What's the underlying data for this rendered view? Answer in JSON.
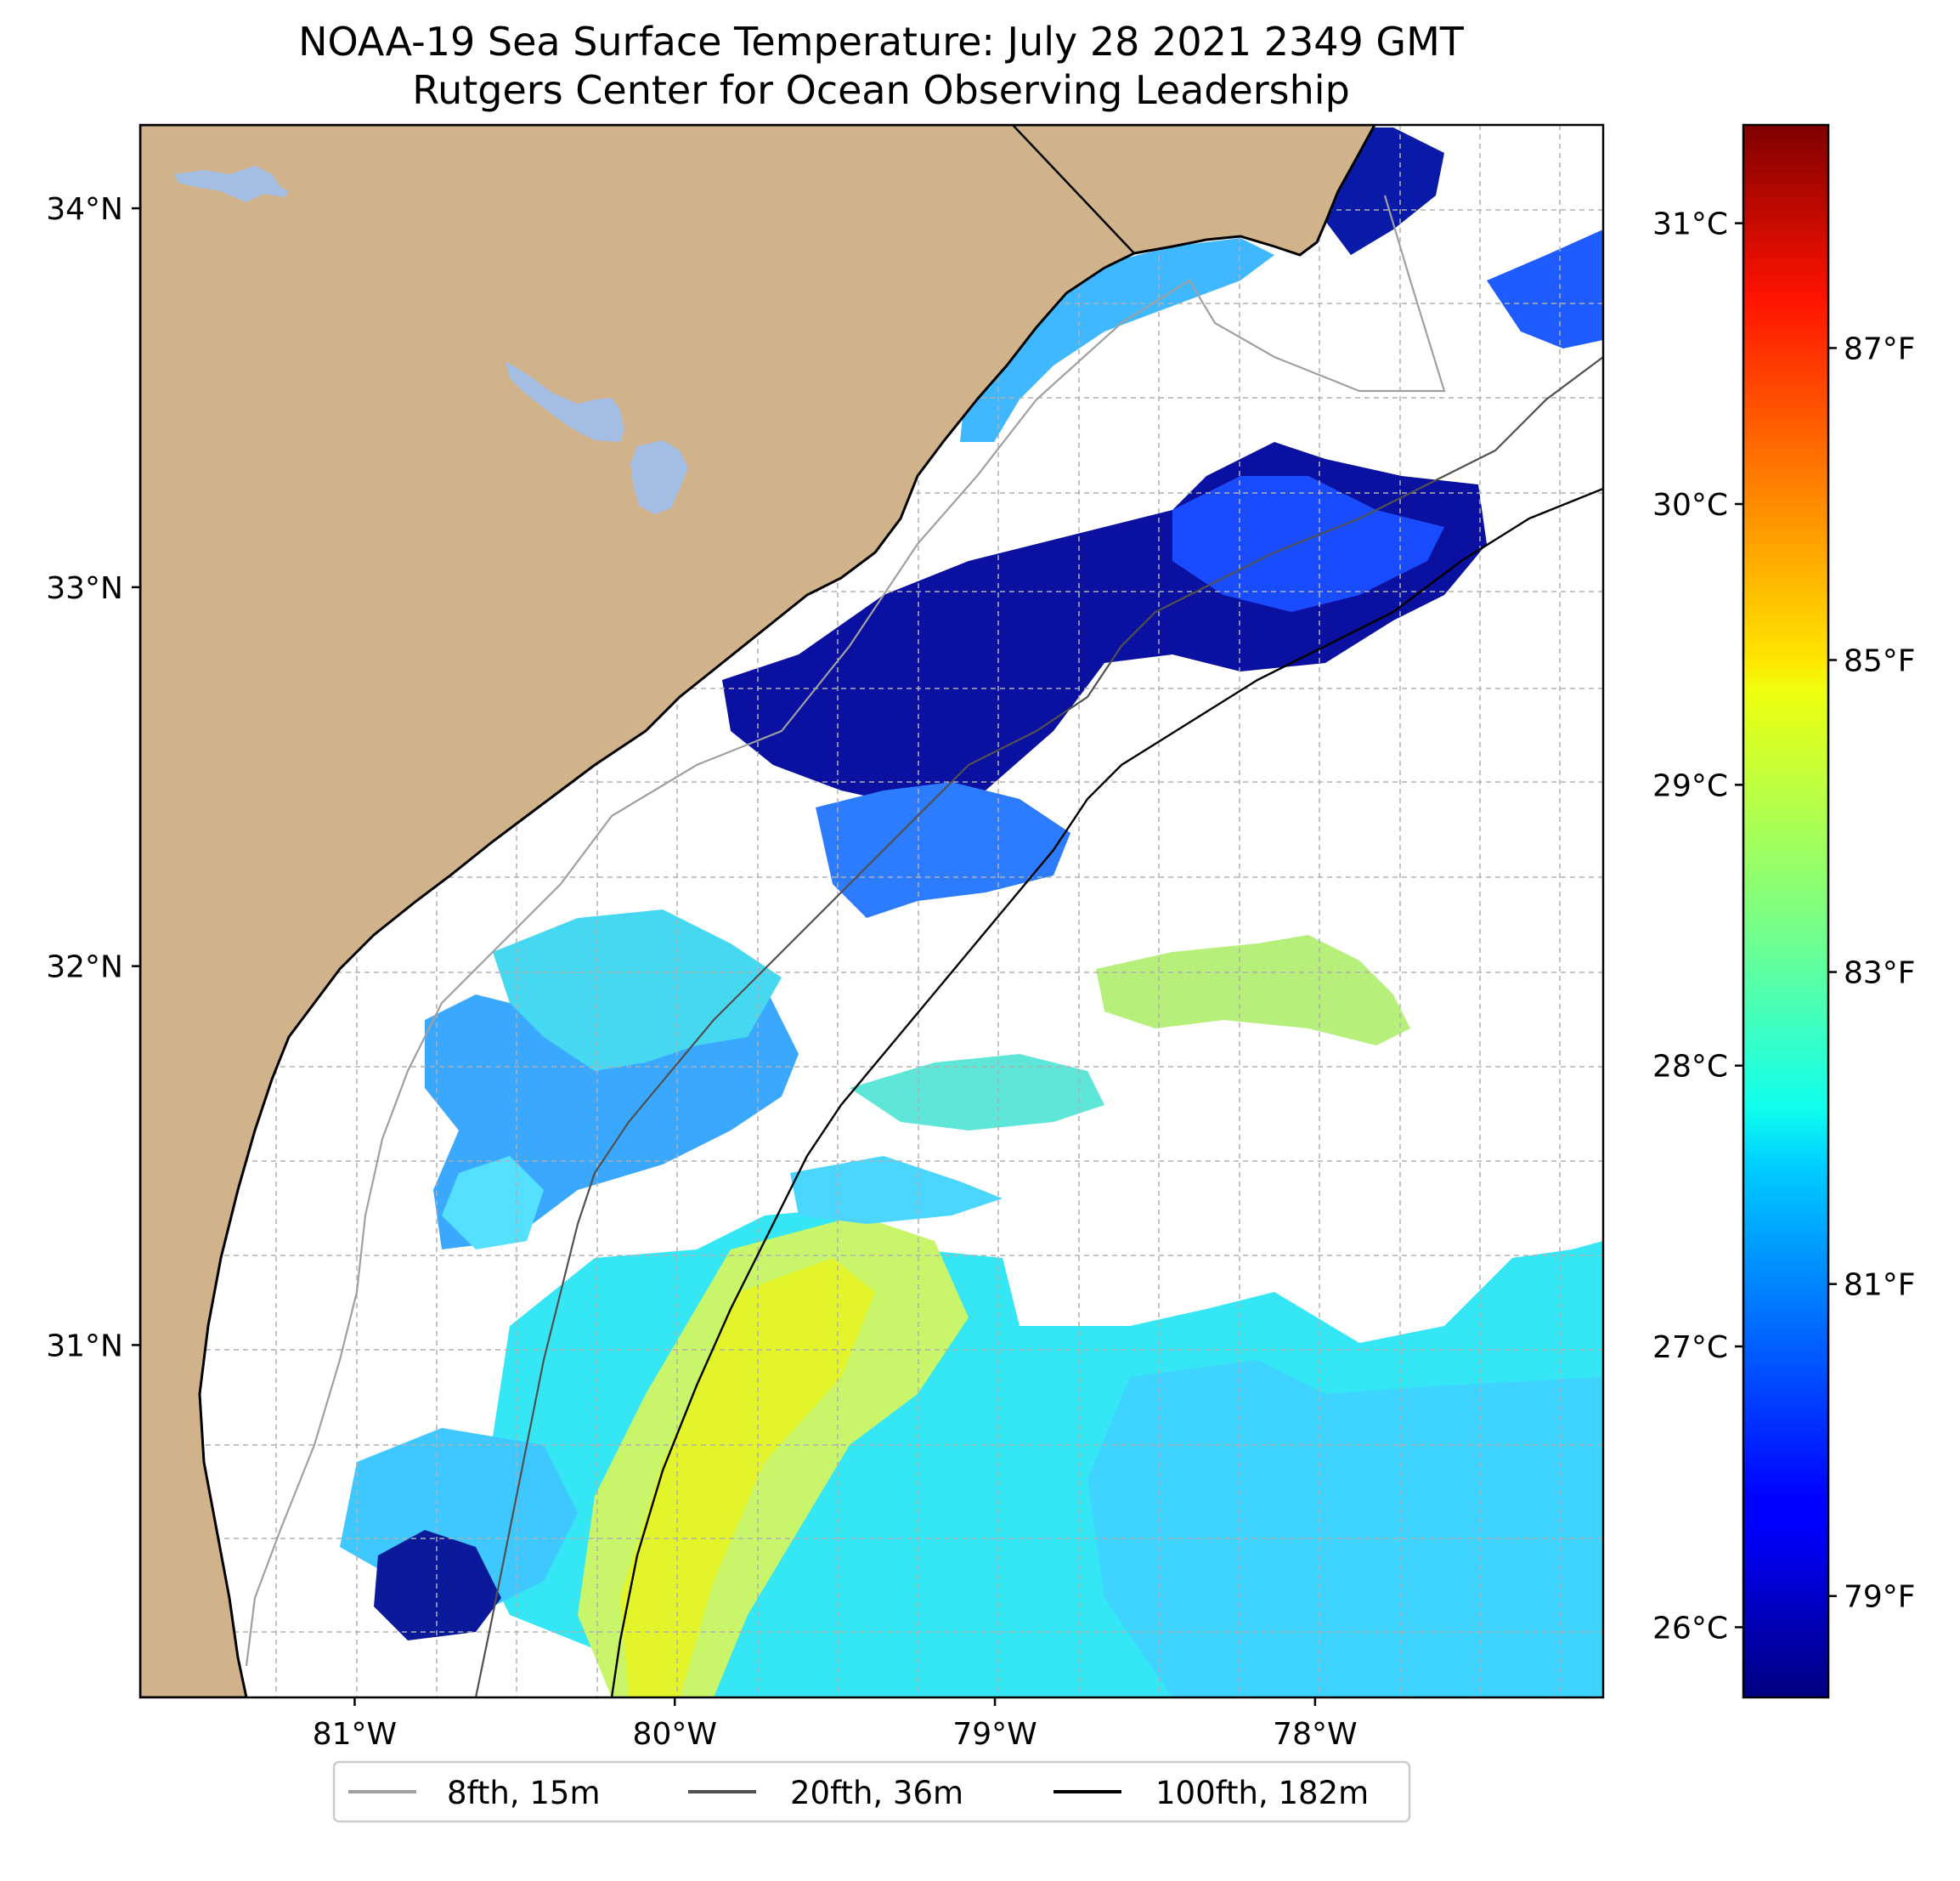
{
  "title": "NOAA-19 Sea Surface Temperature: July 28 2021 2349 GMT",
  "subtitle": "Rutgers Center for Ocean Observing Leadership",
  "map": {
    "lon_range": [
      -81.67,
      -77.1
    ],
    "lat_range": [
      30.07,
      34.22
    ],
    "lat_ticks": [
      {
        "value": 34,
        "label": "34°N"
      },
      {
        "value": 33,
        "label": "33°N"
      },
      {
        "value": 32,
        "label": "32°N"
      },
      {
        "value": 31,
        "label": "31°N"
      }
    ],
    "lon_ticks": [
      {
        "value": -81,
        "label": "81°W"
      },
      {
        "value": -80,
        "label": "80°W"
      },
      {
        "value": -79,
        "label": "79°W"
      },
      {
        "value": -78,
        "label": "78°W"
      }
    ],
    "gridlines": true,
    "colors": {
      "land": "#d1b38b",
      "lakes": "#a3bde3",
      "nodata": "#ffffff",
      "coast": "#000000",
      "grid": "#b0b0b0"
    }
  },
  "colorbar": {
    "colormap": "jet",
    "celsius_ticks": [
      {
        "value": 31,
        "label": "31°C"
      },
      {
        "value": 30,
        "label": "30°C"
      },
      {
        "value": 29,
        "label": "29°C"
      },
      {
        "value": 28,
        "label": "28°C"
      },
      {
        "value": 27,
        "label": "27°C"
      },
      {
        "value": 26,
        "label": "26°C"
      }
    ],
    "fahrenheit_ticks": [
      {
        "value": 87,
        "label": "87°F"
      },
      {
        "value": 85,
        "label": "85°F"
      },
      {
        "value": 83,
        "label": "83°F"
      },
      {
        "value": 81,
        "label": "81°F"
      },
      {
        "value": 79,
        "label": "79°F"
      }
    ]
  },
  "legend": {
    "placement": "bottom-center",
    "items": [
      {
        "label": "8fth, 15m",
        "color": "#a0a0a0"
      },
      {
        "label": "20fth, 36m",
        "color": "#505050"
      },
      {
        "label": "100fth, 182m",
        "color": "#000000"
      }
    ]
  }
}
